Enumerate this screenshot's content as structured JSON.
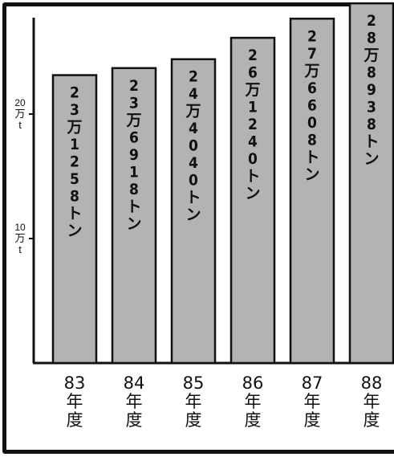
{
  "colors": {
    "bar_fill": "#b3b3b3",
    "bar_stroke": "#111111",
    "axis": "#111111",
    "frame": "#111111"
  },
  "chart_data": {
    "type": "bar",
    "title": "",
    "xlabel": "",
    "ylabel": "",
    "ylim": [
      0,
      34
    ],
    "grid": false,
    "y_ticks": [
      {
        "value": 10,
        "label": [
          "10",
          "万",
          "t"
        ]
      },
      {
        "value": 20,
        "label": [
          "20",
          "万",
          "t"
        ]
      }
    ],
    "categories": [
      [
        "83",
        "年",
        "度"
      ],
      [
        "84",
        "年",
        "度"
      ],
      [
        "85",
        "年",
        "度"
      ],
      [
        "86",
        "年",
        "度"
      ],
      [
        "87",
        "年",
        "度"
      ],
      [
        "88",
        "年",
        "度"
      ]
    ],
    "values": [
      23.1258,
      23.6918,
      24.404,
      26.124,
      27.6608,
      28.8938
    ],
    "data_labels": [
      "23万1258トン",
      "23万6918トン",
      "24万4040トン",
      "26万1240トン",
      "27万6608トン",
      "28万8938トン"
    ]
  }
}
